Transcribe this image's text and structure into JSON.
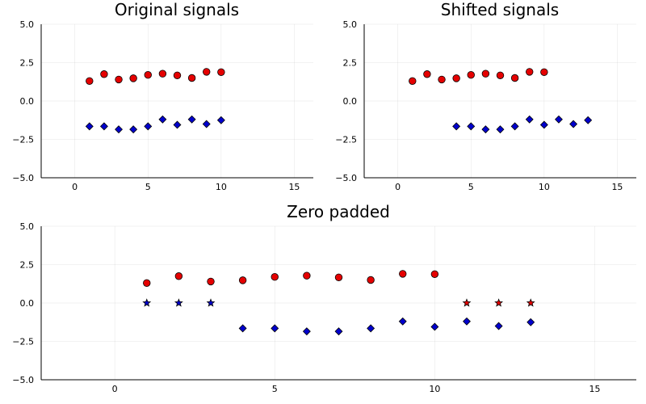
{
  "chart_data": [
    {
      "type": "scatter",
      "title": "Original signals",
      "xlim": [
        -2.3,
        16.3
      ],
      "ylim": [
        -5,
        5
      ],
      "xticks": [
        0,
        5,
        10,
        15
      ],
      "yticks": [
        -5.0,
        -2.5,
        0.0,
        2.5,
        5.0
      ],
      "xtick_labels": [
        "0",
        "5",
        "10",
        "15"
      ],
      "ytick_labels": [
        "−5.0",
        "−2.5",
        "0.0",
        "2.5",
        "5.0"
      ],
      "grid": true,
      "legend": false,
      "series": [
        {
          "marker": "circle",
          "color": "#e50000",
          "x": [
            1,
            2,
            3,
            4,
            5,
            6,
            7,
            8,
            9,
            10
          ],
          "y": [
            1.3,
            1.75,
            1.4,
            1.48,
            1.7,
            1.78,
            1.67,
            1.5,
            1.9,
            1.88
          ]
        },
        {
          "marker": "diamond",
          "color": "#0000cd",
          "x": [
            1,
            2,
            3,
            4,
            5,
            6,
            7,
            8,
            9,
            10
          ],
          "y": [
            -1.65,
            -1.65,
            -1.85,
            -1.85,
            -1.65,
            -1.2,
            -1.55,
            -1.2,
            -1.5,
            -1.25
          ]
        }
      ]
    },
    {
      "type": "scatter",
      "title": "Shifted signals",
      "xlim": [
        -2.3,
        16.3
      ],
      "ylim": [
        -5,
        5
      ],
      "xticks": [
        0,
        5,
        10,
        15
      ],
      "yticks": [
        -5.0,
        -2.5,
        0.0,
        2.5,
        5.0
      ],
      "xtick_labels": [
        "0",
        "5",
        "10",
        "15"
      ],
      "ytick_labels": [
        "−5.0",
        "−2.5",
        "0.0",
        "2.5",
        "5.0"
      ],
      "grid": true,
      "legend": false,
      "series": [
        {
          "marker": "circle",
          "color": "#e50000",
          "x": [
            1,
            2,
            3,
            4,
            5,
            6,
            7,
            8,
            9,
            10
          ],
          "y": [
            1.3,
            1.75,
            1.4,
            1.48,
            1.7,
            1.78,
            1.67,
            1.5,
            1.9,
            1.88
          ]
        },
        {
          "marker": "diamond",
          "color": "#0000cd",
          "x": [
            4,
            5,
            6,
            7,
            8,
            9,
            10,
            11,
            12,
            13
          ],
          "y": [
            -1.65,
            -1.65,
            -1.85,
            -1.85,
            -1.65,
            -1.2,
            -1.55,
            -1.2,
            -1.5,
            -1.25
          ]
        }
      ]
    },
    {
      "type": "scatter",
      "title": "Zero padded",
      "xlim": [
        -2.3,
        16.3
      ],
      "ylim": [
        -5,
        5
      ],
      "xticks": [
        0,
        5,
        10,
        15
      ],
      "yticks": [
        -5.0,
        -2.5,
        0.0,
        2.5,
        5.0
      ],
      "xtick_labels": [
        "0",
        "5",
        "10",
        "15"
      ],
      "ytick_labels": [
        "−5.0",
        "−2.5",
        "0.0",
        "2.5",
        "5.0"
      ],
      "grid": true,
      "legend": false,
      "series": [
        {
          "marker": "circle",
          "color": "#e50000",
          "x": [
            1,
            2,
            3,
            4,
            5,
            6,
            7,
            8,
            9,
            10
          ],
          "y": [
            1.3,
            1.75,
            1.4,
            1.48,
            1.7,
            1.78,
            1.67,
            1.5,
            1.9,
            1.88
          ]
        },
        {
          "marker": "star",
          "color": "#e50000",
          "x": [
            11,
            12,
            13
          ],
          "y": [
            0,
            0,
            0
          ]
        },
        {
          "marker": "star",
          "color": "#0000cd",
          "x": [
            1,
            2,
            3
          ],
          "y": [
            0,
            0,
            0
          ]
        },
        {
          "marker": "diamond",
          "color": "#0000cd",
          "x": [
            4,
            5,
            6,
            7,
            8,
            9,
            10,
            11,
            12,
            13
          ],
          "y": [
            -1.65,
            -1.65,
            -1.85,
            -1.85,
            -1.65,
            -1.2,
            -1.55,
            -1.2,
            -1.5,
            -1.25
          ]
        }
      ]
    }
  ]
}
